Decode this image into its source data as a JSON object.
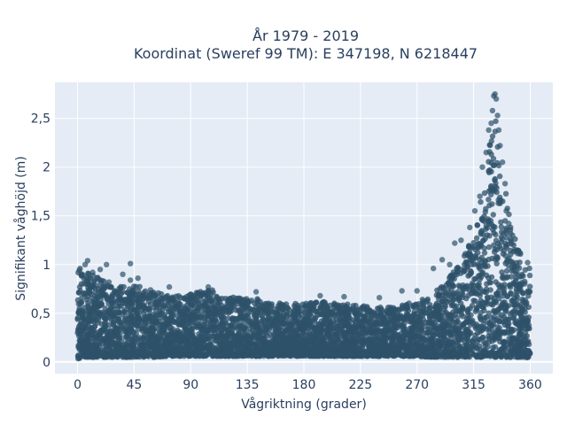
{
  "chart_data": {
    "type": "scatter",
    "title_line1": "År 1979 - 2019",
    "title_line2": "Koordinat (Sweref 99 TM): E 347198, N 6218447",
    "xlabel": "Vågriktning (grader)",
    "ylabel": "Signifikant våghöjd (m)",
    "xlim": [
      -18,
      378
    ],
    "ylim": [
      -0.12,
      2.87
    ],
    "x_ticks": [
      0,
      45,
      90,
      135,
      180,
      225,
      270,
      315,
      360
    ],
    "x_tick_labels": [
      "0",
      "45",
      "90",
      "135",
      "180",
      "225",
      "270",
      "315",
      "360"
    ],
    "y_ticks": [
      0,
      0.5,
      1,
      1.5,
      2,
      2.5
    ],
    "y_tick_labels": [
      "0",
      "0,5",
      "1",
      "1,5",
      "2",
      "2,5"
    ],
    "grid": true,
    "marker_color": "#2e5269",
    "background_color": "#e5ecf6",
    "envelope": {
      "x": [
        0,
        5,
        10,
        20,
        30,
        40,
        45,
        60,
        75,
        90,
        105,
        120,
        135,
        150,
        165,
        180,
        195,
        210,
        225,
        240,
        255,
        270,
        280,
        290,
        300,
        310,
        315,
        320,
        325,
        330,
        332,
        335,
        340,
        345,
        350,
        355,
        360
      ],
      "upper": [
        0.95,
        1.0,
        0.9,
        0.85,
        0.78,
        0.8,
        0.8,
        0.72,
        0.68,
        0.7,
        0.75,
        0.66,
        0.68,
        0.62,
        0.6,
        0.6,
        0.62,
        0.6,
        0.58,
        0.56,
        0.58,
        0.62,
        0.68,
        0.78,
        0.95,
        1.15,
        1.35,
        1.6,
        2.0,
        2.45,
        2.6,
        2.2,
        1.8,
        1.4,
        1.2,
        1.0,
        0.98
      ],
      "lower": [
        0.03,
        0.05,
        0.05,
        0.05,
        0.05,
        0.05,
        0.05,
        0.05,
        0.06,
        0.06,
        0.06,
        0.06,
        0.06,
        0.06,
        0.06,
        0.06,
        0.06,
        0.06,
        0.06,
        0.06,
        0.06,
        0.06,
        0.05,
        0.05,
        0.05,
        0.05,
        0.05,
        0.05,
        0.05,
        0.05,
        0.05,
        0.05,
        0.05,
        0.05,
        0.05,
        0.05,
        0.04
      ]
    },
    "outliers": [
      {
        "x": 2,
        "y": 0.96
      },
      {
        "x": 6,
        "y": 1.0
      },
      {
        "x": 8,
        "y": 1.04
      },
      {
        "x": 12,
        "y": 0.92
      },
      {
        "x": 18,
        "y": 0.95
      },
      {
        "x": 23,
        "y": 1.0
      },
      {
        "x": 25,
        "y": 0.82
      },
      {
        "x": 36,
        "y": 0.9
      },
      {
        "x": 42,
        "y": 0.84
      },
      {
        "x": 42,
        "y": 1.01
      },
      {
        "x": 48,
        "y": 0.86
      },
      {
        "x": 58,
        "y": 0.74
      },
      {
        "x": 73,
        "y": 0.77
      },
      {
        "x": 104,
        "y": 0.77
      },
      {
        "x": 142,
        "y": 0.72
      },
      {
        "x": 193,
        "y": 0.68
      },
      {
        "x": 212,
        "y": 0.67
      },
      {
        "x": 240,
        "y": 0.66
      },
      {
        "x": 258,
        "y": 0.73
      },
      {
        "x": 270,
        "y": 0.73
      },
      {
        "x": 283,
        "y": 0.96
      },
      {
        "x": 290,
        "y": 1.05
      },
      {
        "x": 296,
        "y": 1.0
      },
      {
        "x": 300,
        "y": 1.22
      },
      {
        "x": 305,
        "y": 1.25
      },
      {
        "x": 312,
        "y": 1.38
      },
      {
        "x": 316,
        "y": 1.55
      },
      {
        "x": 320,
        "y": 1.7
      },
      {
        "x": 322,
        "y": 2.0
      },
      {
        "x": 325,
        "y": 2.15
      },
      {
        "x": 327,
        "y": 2.38
      },
      {
        "x": 329,
        "y": 2.45
      },
      {
        "x": 330,
        "y": 2.58
      },
      {
        "x": 331,
        "y": 2.73
      },
      {
        "x": 332,
        "y": 2.75
      },
      {
        "x": 333,
        "y": 2.7
      },
      {
        "x": 334,
        "y": 2.53
      },
      {
        "x": 335,
        "y": 2.38
      },
      {
        "x": 336,
        "y": 2.22
      },
      {
        "x": 338,
        "y": 2.05
      },
      {
        "x": 340,
        "y": 1.83
      },
      {
        "x": 341,
        "y": 1.55
      },
      {
        "x": 343,
        "y": 1.42
      },
      {
        "x": 346,
        "y": 1.3
      },
      {
        "x": 352,
        "y": 1.12
      },
      {
        "x": 358,
        "y": 1.02
      }
    ]
  }
}
